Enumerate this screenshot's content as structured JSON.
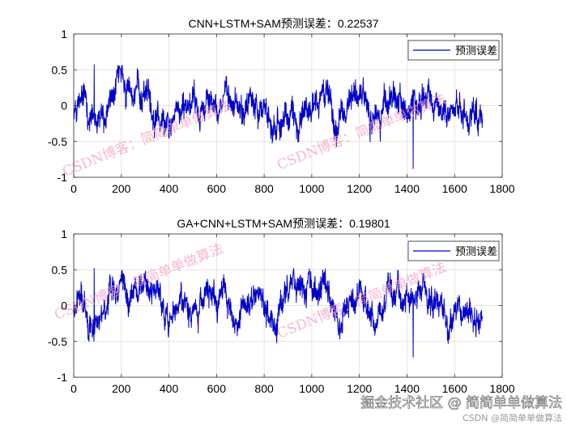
{
  "chart_data": [
    {
      "type": "line",
      "title": "CNN+LSTM+SAM预测误差：0.22537",
      "xlabel": "",
      "ylabel": "",
      "xlim": [
        0,
        1800
      ],
      "ylim": [
        -1,
        1
      ],
      "xticks": [
        "0",
        "200",
        "400",
        "600",
        "800",
        "1000",
        "1200",
        "1400",
        "1600",
        "1800"
      ],
      "yticks": [
        "1",
        "0.5",
        "0",
        "-0.5",
        "-1"
      ],
      "grid": true,
      "legend_position": "top-right",
      "n_points": 1717,
      "series": [
        {
          "name": "预测误差",
          "color": "#0000c8",
          "values_description": "noisy error series, mostly within about -0.7..0.55, extremes near 0.57 and -0.88",
          "seed": 12345,
          "amplitude": 0.27,
          "max": 0.57,
          "min": -0.88
        }
      ]
    },
    {
      "type": "line",
      "title": "GA+CNN+LSTM+SAM预测误差：0.19801",
      "xlabel": "",
      "ylabel": "",
      "xlim": [
        0,
        1800
      ],
      "ylim": [
        -1,
        1
      ],
      "xticks": [
        "0",
        "200",
        "400",
        "600",
        "800",
        "1000",
        "1200",
        "1400",
        "1600",
        "1800"
      ],
      "yticks": [
        "1",
        "0.5",
        "0",
        "-0.5",
        "-1"
      ],
      "grid": true,
      "legend_position": "top-right",
      "n_points": 1717,
      "series": [
        {
          "name": "预测误差",
          "color": "#0000c8",
          "values_description": "noisy error series, mostly within about -0.65..0.5, extremes near 0.52 and -0.72",
          "seed": 67890,
          "amplitude": 0.24,
          "max": 0.52,
          "min": -0.72
        }
      ]
    }
  ],
  "watermarks": [
    {
      "text": "CSDN博客：简简单单做算法"
    },
    {
      "text": "CSDN博客：简简单单做算法"
    },
    {
      "text": "CSDN博客：简简单单做算法"
    },
    {
      "text": "CSDN博客：简简单单做算法"
    }
  ],
  "footer": {
    "brand": "掘金技术社区 @ 简简单单做算法",
    "sub": "CSDN @简简单单做算法"
  },
  "colors": {
    "line": "#0000c8",
    "axis": "#262626",
    "grid": "#dcdcdc",
    "watermark": "#f4a0c0"
  }
}
